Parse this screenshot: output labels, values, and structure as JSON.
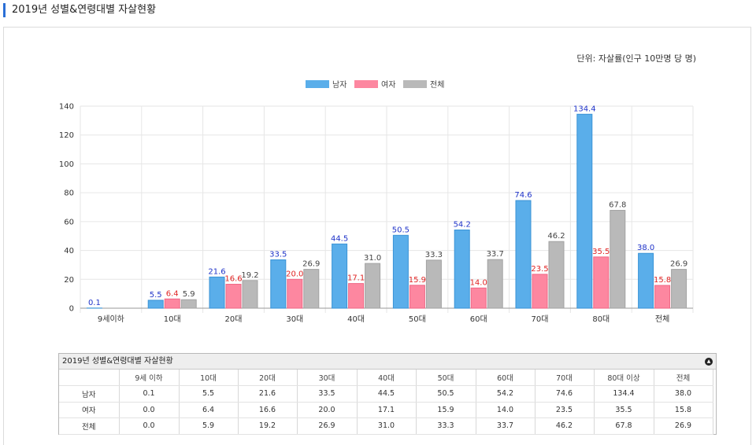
{
  "page": {
    "title": "2019년 성별&연령대별 자살현황"
  },
  "unit_label": "단위: 자살률(인구 10만명 당 명)",
  "colors": {
    "male": "#5aaeea",
    "female": "#fd87a0",
    "total": "#b9b9b9",
    "male_label": "#1f33c9",
    "female_label": "#e02424",
    "total_label": "#444444"
  },
  "chart_data": {
    "type": "bar",
    "categories": [
      "9세이하",
      "10대",
      "20대",
      "30대",
      "40대",
      "50대",
      "60대",
      "70대",
      "80대",
      "전체"
    ],
    "series": [
      {
        "name": "남자",
        "values": [
          0.1,
          5.5,
          21.6,
          33.5,
          44.5,
          50.5,
          54.2,
          74.6,
          134.4,
          38.0
        ],
        "labels": [
          "0.1",
          "5.5",
          "21.6",
          "33.5",
          "44.5",
          "50.5",
          "54.2",
          "74.6",
          "134.4",
          "38.0"
        ]
      },
      {
        "name": "여자",
        "values": [
          null,
          6.4,
          16.6,
          20.0,
          17.1,
          15.9,
          14.0,
          23.5,
          35.5,
          15.8
        ],
        "labels": [
          "",
          "6.4",
          "16.6",
          "20.0",
          "17.1",
          "15.9",
          "14.0",
          "23.5",
          "35.5",
          "15.8"
        ]
      },
      {
        "name": "전체",
        "values": [
          null,
          5.9,
          19.2,
          26.9,
          31.0,
          33.3,
          33.7,
          46.2,
          67.8,
          26.9
        ],
        "labels": [
          "",
          "5.9",
          "19.2",
          "26.9",
          "31.0",
          "33.3",
          "33.7",
          "46.2",
          "67.8",
          "26.9"
        ]
      }
    ],
    "ylim": [
      0,
      140
    ],
    "yticks": [
      "0",
      "20",
      "40",
      "60",
      "80",
      "100",
      "120",
      "140"
    ],
    "legend_position": "top-center",
    "grid": true
  },
  "table": {
    "caption": "2019년 성별&연령대별 자살현황",
    "headers": [
      "",
      "9세 이하",
      "10대",
      "20대",
      "30대",
      "40대",
      "50대",
      "60대",
      "70대",
      "80대 이상",
      "전체"
    ],
    "rows": [
      [
        "남자",
        "0.1",
        "5.5",
        "21.6",
        "33.5",
        "44.5",
        "50.5",
        "54.2",
        "74.6",
        "134.4",
        "38.0"
      ],
      [
        "여자",
        "0.0",
        "6.4",
        "16.6",
        "20.0",
        "17.1",
        "15.9",
        "14.0",
        "23.5",
        "35.5",
        "15.8"
      ],
      [
        "전체",
        "0.0",
        "5.9",
        "19.2",
        "26.9",
        "31.0",
        "33.3",
        "33.7",
        "46.2",
        "67.8",
        "26.9"
      ]
    ]
  }
}
